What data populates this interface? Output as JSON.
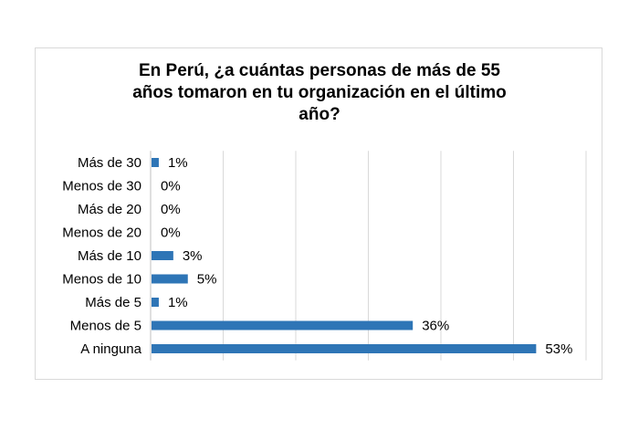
{
  "chart_data": {
    "type": "bar",
    "orientation": "horizontal",
    "title_lines": [
      "En Perú, ¿a cuántas personas de más de 55",
      "años tomaron en tu organización en el último",
      "año?"
    ],
    "categories": [
      "Más de 30",
      "Menos de 30",
      "Más de 20",
      "Menos de 20",
      "Más de 10",
      "Menos de 10",
      "Más de 5",
      "Menos de 5",
      "A ninguna"
    ],
    "values": [
      1,
      0,
      0,
      0,
      3,
      5,
      1,
      36,
      53
    ],
    "value_labels": [
      "1%",
      "0%",
      "0%",
      "0%",
      "3%",
      "5%",
      "1%",
      "36%",
      "53%"
    ],
    "xlim": [
      0,
      60
    ],
    "grid": "vertical",
    "legend": "none",
    "bar_color": "#2e75b6",
    "grid_color": "#d9d9d9"
  }
}
